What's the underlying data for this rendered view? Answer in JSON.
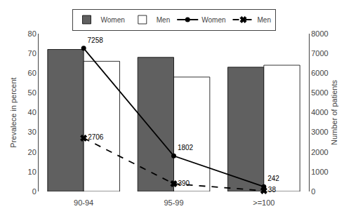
{
  "chart_data": {
    "type": "bar",
    "categories": [
      "90-94",
      "95-99",
      ">=100"
    ],
    "series": [
      {
        "name": "Women",
        "type": "bar",
        "color": "#606060",
        "values": [
          72.0,
          68.0,
          63.0
        ]
      },
      {
        "name": "Men",
        "type": "bar",
        "color": "#ffffff",
        "values": [
          66.0,
          58.0,
          64.0
        ]
      },
      {
        "name": "Women",
        "type": "line",
        "axis": "y2",
        "color": "#000000",
        "line_style": "solid",
        "marker": "circle",
        "data_labels": true,
        "values": [
          7258,
          1802,
          242
        ]
      },
      {
        "name": "Men",
        "type": "line",
        "axis": "y2",
        "color": "#000000",
        "line_style": "dash",
        "marker": "x",
        "data_labels": true,
        "values": [
          2706,
          390,
          38
        ]
      }
    ],
    "ylabel": "Prevalece in percent",
    "y2label": "Number of patients",
    "ylim": [
      0,
      80
    ],
    "yticks": [
      0,
      10,
      20,
      30,
      40,
      50,
      60,
      70,
      80
    ],
    "y2lim": [
      0,
      8000
    ],
    "y2ticks": [
      0,
      1000,
      2000,
      3000,
      4000,
      5000,
      6000,
      7000,
      8000
    ],
    "grid": false,
    "legend": "top"
  }
}
